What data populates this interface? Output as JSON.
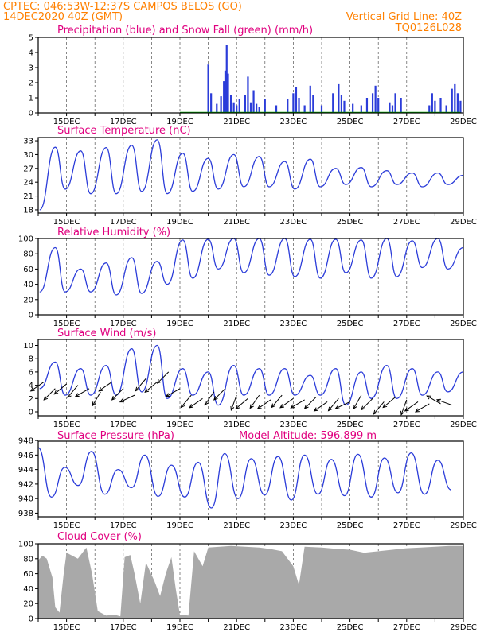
{
  "header": {
    "line1_left": "CPTEC:   046:53W-12:37S   CAMPOS BELOS (GO)",
    "line2_left": "14DEC2020 40Z (GMT)",
    "line2_right": "Vertical Grid Line: 40Z",
    "line3_right": "TQ0126L028"
  },
  "colors": {
    "header": "#ff8000",
    "title": "#e0007f",
    "line": "#2b3cd9",
    "snow": "#00aa00",
    "cloud": "#a9a9a9",
    "wind": "#000000"
  },
  "x_ticks": [
    "15DEC",
    "17DEC",
    "19DEC",
    "21DEC",
    "23DEC",
    "25DEC",
    "27DEC",
    "29DEC"
  ],
  "chart_data": [
    {
      "id": "precip",
      "type": "bar",
      "title": "Precipitation (blue) and Snow Fall (green) (mm/h)",
      "x_start": 14.0,
      "x_end": 29.0,
      "ylim": [
        0,
        5
      ],
      "yticks": [
        0,
        1,
        2,
        3,
        4,
        5
      ],
      "bars": [
        [
          20.0,
          3.2
        ],
        [
          20.1,
          1.3
        ],
        [
          20.3,
          0.6
        ],
        [
          20.45,
          1.1
        ],
        [
          20.55,
          2.1
        ],
        [
          20.6,
          2.8
        ],
        [
          20.65,
          4.5
        ],
        [
          20.7,
          2.6
        ],
        [
          20.8,
          1.2
        ],
        [
          20.9,
          0.7
        ],
        [
          21.0,
          0.5
        ],
        [
          21.1,
          0.9
        ],
        [
          21.3,
          1.2
        ],
        [
          21.4,
          2.4
        ],
        [
          21.5,
          0.7
        ],
        [
          21.6,
          1.5
        ],
        [
          21.7,
          0.6
        ],
        [
          21.8,
          0.4
        ],
        [
          22.0,
          0.9
        ],
        [
          22.4,
          0.5
        ],
        [
          22.8,
          0.9
        ],
        [
          23.0,
          1.3
        ],
        [
          23.1,
          1.7
        ],
        [
          23.2,
          1.0
        ],
        [
          23.4,
          0.5
        ],
        [
          23.6,
          1.8
        ],
        [
          23.7,
          1.2
        ],
        [
          24.0,
          0.5
        ],
        [
          24.4,
          1.3
        ],
        [
          24.6,
          1.9
        ],
        [
          24.7,
          1.2
        ],
        [
          24.8,
          0.8
        ],
        [
          25.1,
          0.6
        ],
        [
          25.4,
          0.5
        ],
        [
          25.6,
          1.0
        ],
        [
          25.8,
          1.3
        ],
        [
          25.9,
          1.8
        ],
        [
          26.0,
          1.0
        ],
        [
          26.4,
          0.7
        ],
        [
          26.5,
          0.5
        ],
        [
          26.6,
          1.3
        ],
        [
          26.8,
          1.0
        ],
        [
          27.8,
          0.5
        ],
        [
          27.9,
          1.3
        ],
        [
          28.0,
          0.8
        ],
        [
          28.2,
          1.0
        ],
        [
          28.4,
          0.5
        ],
        [
          28.6,
          1.6
        ],
        [
          28.7,
          1.9
        ],
        [
          28.8,
          1.3
        ],
        [
          28.9,
          0.8
        ]
      ],
      "snow_value": 0
    },
    {
      "id": "temp",
      "type": "line",
      "title": "Surface Temperature (nC)",
      "x_start": 14.0,
      "x_end": 29.0,
      "ylim": [
        17.3,
        33.7
      ],
      "yticks": [
        18,
        21,
        24,
        27,
        30,
        33
      ],
      "peaks": [
        31.6,
        30.8,
        31.5,
        32.0,
        33.2,
        30.3,
        29.2,
        30.0,
        29.6,
        28.5,
        29.0,
        27.0,
        27.2,
        26.5,
        26.0,
        26.0,
        25.5
      ],
      "troughs": [
        18.0,
        22.5,
        21.5,
        21.5,
        22.0,
        21.5,
        22.0,
        22.5,
        23.0,
        23.0,
        22.5,
        23.0,
        23.5,
        23.0,
        23.5,
        23.0,
        23.5
      ]
    },
    {
      "id": "rh",
      "type": "line",
      "title": "Relative Humidity (%)",
      "x_start": 14.0,
      "x_end": 29.0,
      "ylim": [
        0,
        100
      ],
      "yticks": [
        0,
        20,
        40,
        60,
        80,
        100
      ],
      "peaks": [
        88,
        60,
        68,
        75,
        70,
        98,
        99,
        100,
        100,
        100,
        99,
        99,
        98,
        100,
        97,
        100,
        88
      ],
      "troughs": [
        30,
        30,
        30,
        26,
        28,
        40,
        48,
        60,
        55,
        52,
        50,
        48,
        55,
        48,
        50,
        62,
        60
      ]
    },
    {
      "id": "wind",
      "type": "line",
      "title": "Surface Wind (m/s)",
      "x_start": 14.0,
      "x_end": 29.0,
      "ylim": [
        -0.6,
        10.9
      ],
      "yticks": [
        0,
        2,
        4,
        6,
        8,
        10
      ],
      "peaks": [
        7.5,
        6.5,
        7.0,
        9.5,
        10.0,
        6.5,
        6.0,
        7.0,
        6.5,
        6.5,
        5.5,
        6.5,
        6.0,
        7.0,
        6.5,
        6.0,
        6.0
      ],
      "troughs": [
        3.5,
        2.5,
        2.5,
        2.5,
        3.0,
        2.0,
        2.5,
        1.0,
        2.5,
        2.5,
        2.5,
        2.5,
        1.0,
        2.0,
        2.0,
        2.5,
        3.0
      ],
      "vectors": [
        [
          14.2,
          4.5,
          235
        ],
        [
          14.6,
          3.5,
          225
        ],
        [
          15.0,
          4.2,
          230
        ],
        [
          15.4,
          4.0,
          220
        ],
        [
          15.8,
          3.5,
          240
        ],
        [
          16.2,
          3.0,
          210
        ],
        [
          16.6,
          4.5,
          235
        ],
        [
          17.0,
          3.5,
          225
        ],
        [
          17.4,
          2.5,
          245
        ],
        [
          17.8,
          5.0,
          220
        ],
        [
          18.2,
          4.5,
          230
        ],
        [
          18.6,
          6.0,
          225
        ],
        [
          19.0,
          3.5,
          240
        ],
        [
          19.4,
          2.5,
          220
        ],
        [
          19.8,
          2.0,
          235
        ],
        [
          20.2,
          3.0,
          215
        ],
        [
          20.6,
          3.5,
          225
        ],
        [
          21.0,
          2.5,
          200
        ],
        [
          21.4,
          2.0,
          230
        ],
        [
          21.8,
          2.5,
          215
        ],
        [
          22.2,
          1.8,
          235
        ],
        [
          22.6,
          2.5,
          220
        ],
        [
          23.0,
          2.0,
          235
        ],
        [
          23.4,
          1.8,
          240
        ],
        [
          23.8,
          2.2,
          225
        ],
        [
          24.2,
          1.5,
          235
        ],
        [
          24.6,
          2.0,
          220
        ],
        [
          25.0,
          1.5,
          245
        ],
        [
          25.4,
          2.5,
          210
        ],
        [
          25.8,
          2.0,
          225
        ],
        [
          26.2,
          1.5,
          220
        ],
        [
          26.6,
          2.2,
          230
        ],
        [
          27.0,
          1.8,
          200
        ],
        [
          27.4,
          1.5,
          235
        ],
        [
          27.8,
          1.2,
          240
        ],
        [
          28.2,
          1.2,
          300
        ],
        [
          28.6,
          1.0,
          290
        ]
      ]
    },
    {
      "id": "pressure",
      "type": "line",
      "title": "Surface Pressure (hPa)",
      "annotation": "Model Altitude: 596.899  m",
      "x_start": 14.0,
      "x_end": 29.0,
      "ylim": [
        937.5,
        947.9
      ],
      "yticks": [
        938,
        940,
        942,
        944,
        946,
        948
      ],
      "daily": [
        947.0,
        940.2,
        944.3,
        941.8,
        946.5,
        940.6,
        944.0,
        941.5,
        946.0,
        940.3,
        944.6,
        940.2,
        945.0,
        938.7,
        946.2,
        940.0,
        945.5,
        940.5,
        945.8,
        939.8,
        946.0,
        940.6,
        945.4,
        940.4,
        946.1,
        940.2,
        945.6,
        940.8,
        946.3,
        940.6,
        945.3,
        941.2,
        944.3
      ]
    },
    {
      "id": "cloud",
      "type": "area",
      "title": "Cloud Cover (%)",
      "x_start": 14.0,
      "x_end": 29.0,
      "ylim": [
        0,
        100
      ],
      "yticks": [
        0,
        20,
        40,
        60,
        80,
        100
      ],
      "profile": [
        [
          14.0,
          78
        ],
        [
          14.15,
          84
        ],
        [
          14.3,
          80
        ],
        [
          14.5,
          55
        ],
        [
          14.6,
          15
        ],
        [
          14.75,
          8
        ],
        [
          14.9,
          60
        ],
        [
          15.0,
          88
        ],
        [
          15.4,
          80
        ],
        [
          15.7,
          95
        ],
        [
          15.9,
          60
        ],
        [
          16.1,
          10
        ],
        [
          16.4,
          4
        ],
        [
          16.7,
          5
        ],
        [
          16.9,
          3
        ],
        [
          17.05,
          82
        ],
        [
          17.25,
          85
        ],
        [
          17.4,
          60
        ],
        [
          17.6,
          20
        ],
        [
          17.8,
          75
        ],
        [
          18.1,
          50
        ],
        [
          18.3,
          30
        ],
        [
          18.5,
          60
        ],
        [
          18.7,
          82
        ],
        [
          18.85,
          40
        ],
        [
          19.0,
          5
        ],
        [
          19.3,
          4
        ],
        [
          19.5,
          90
        ],
        [
          19.8,
          70
        ],
        [
          20.0,
          95
        ],
        [
          20.4,
          96
        ],
        [
          20.8,
          97
        ],
        [
          21.3,
          96
        ],
        [
          21.8,
          95
        ],
        [
          22.2,
          93
        ],
        [
          22.6,
          90
        ],
        [
          23.0,
          70
        ],
        [
          23.2,
          45
        ],
        [
          23.4,
          96
        ],
        [
          24.0,
          95
        ],
        [
          24.6,
          93
        ],
        [
          25.0,
          92
        ],
        [
          25.5,
          88
        ],
        [
          26.0,
          90
        ],
        [
          26.5,
          92
        ],
        [
          27.0,
          94
        ],
        [
          27.5,
          95
        ],
        [
          28.0,
          96
        ],
        [
          28.5,
          97
        ],
        [
          29.0,
          97
        ]
      ]
    }
  ]
}
